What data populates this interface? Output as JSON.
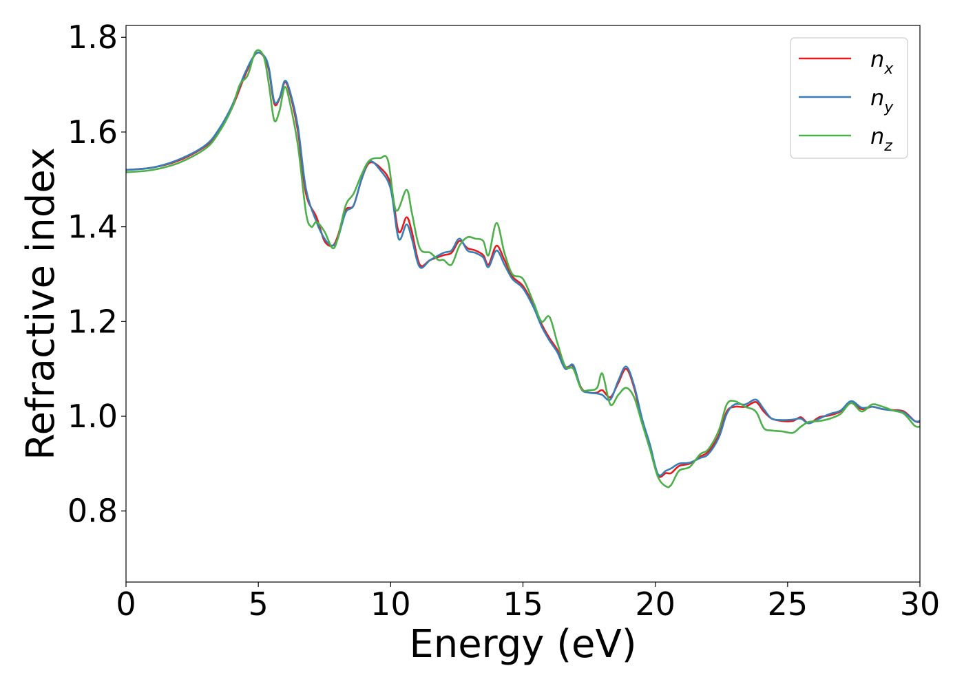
{
  "chart_data": {
    "type": "line",
    "title": "",
    "xlabel": "Energy (eV)",
    "ylabel": "Refractive index",
    "xlim": [
      0,
      30
    ],
    "ylim": [
      0.65,
      1.825
    ],
    "xticks": [
      0,
      5,
      10,
      15,
      20,
      25,
      30
    ],
    "yticks": [
      0.8,
      1.0,
      1.2,
      1.4,
      1.6,
      1.8
    ],
    "grid": false,
    "legend_position": "top-right",
    "series": [
      {
        "name": "n_x",
        "legend_base": "n",
        "legend_sub": "x",
        "color": "#e41a1c",
        "points": [
          [
            0,
            1.52
          ],
          [
            1,
            1.525
          ],
          [
            2,
            1.54
          ],
          [
            3,
            1.57
          ],
          [
            3.5,
            1.6
          ],
          [
            4,
            1.65
          ],
          [
            4.5,
            1.72
          ],
          [
            4.9,
            1.765
          ],
          [
            5.2,
            1.76
          ],
          [
            5.4,
            1.73
          ],
          [
            5.6,
            1.66
          ],
          [
            5.8,
            1.67
          ],
          [
            6.0,
            1.705
          ],
          [
            6.2,
            1.68
          ],
          [
            6.5,
            1.6
          ],
          [
            6.8,
            1.47
          ],
          [
            7.2,
            1.42
          ],
          [
            7.5,
            1.37
          ],
          [
            7.8,
            1.36
          ],
          [
            8.0,
            1.38
          ],
          [
            8.3,
            1.435
          ],
          [
            8.6,
            1.445
          ],
          [
            8.9,
            1.5
          ],
          [
            9.2,
            1.535
          ],
          [
            9.6,
            1.525
          ],
          [
            10.0,
            1.49
          ],
          [
            10.3,
            1.39
          ],
          [
            10.6,
            1.42
          ],
          [
            10.8,
            1.39
          ],
          [
            11.1,
            1.32
          ],
          [
            11.5,
            1.33
          ],
          [
            12.0,
            1.34
          ],
          [
            12.3,
            1.345
          ],
          [
            12.6,
            1.37
          ],
          [
            12.9,
            1.355
          ],
          [
            13.2,
            1.35
          ],
          [
            13.5,
            1.34
          ],
          [
            13.7,
            1.32
          ],
          [
            14.0,
            1.36
          ],
          [
            14.3,
            1.33
          ],
          [
            14.6,
            1.295
          ],
          [
            15.0,
            1.275
          ],
          [
            15.4,
            1.235
          ],
          [
            15.7,
            1.195
          ],
          [
            16.0,
            1.165
          ],
          [
            16.3,
            1.14
          ],
          [
            16.6,
            1.105
          ],
          [
            16.9,
            1.105
          ],
          [
            17.2,
            1.06
          ],
          [
            17.5,
            1.05
          ],
          [
            17.8,
            1.05
          ],
          [
            18.0,
            1.055
          ],
          [
            18.3,
            1.04
          ],
          [
            18.6,
            1.07
          ],
          [
            18.9,
            1.1
          ],
          [
            19.2,
            1.06
          ],
          [
            19.5,
            0.99
          ],
          [
            19.8,
            0.935
          ],
          [
            20.1,
            0.875
          ],
          [
            20.4,
            0.88
          ],
          [
            20.6,
            0.88
          ],
          [
            20.9,
            0.895
          ],
          [
            21.3,
            0.9
          ],
          [
            21.7,
            0.915
          ],
          [
            22.0,
            0.925
          ],
          [
            22.4,
            0.96
          ],
          [
            22.7,
            1.01
          ],
          [
            23.0,
            1.02
          ],
          [
            23.4,
            1.02
          ],
          [
            23.8,
            1.03
          ],
          [
            24.1,
            1.01
          ],
          [
            24.4,
            0.995
          ],
          [
            24.8,
            0.99
          ],
          [
            25.2,
            0.99
          ],
          [
            25.5,
            0.998
          ],
          [
            25.8,
            0.985
          ],
          [
            26.2,
            0.998
          ],
          [
            26.6,
            1.002
          ],
          [
            27.0,
            1.01
          ],
          [
            27.4,
            1.028
          ],
          [
            27.8,
            1.015
          ],
          [
            28.2,
            1.02
          ],
          [
            28.6,
            1.015
          ],
          [
            29.0,
            1.013
          ],
          [
            29.4,
            1.01
          ],
          [
            29.8,
            0.99
          ],
          [
            30.0,
            0.988
          ]
        ]
      },
      {
        "name": "n_y",
        "legend_base": "n",
        "legend_sub": "y",
        "color": "#377eb8",
        "points": [
          [
            0,
            1.52
          ],
          [
            1,
            1.525
          ],
          [
            2,
            1.542
          ],
          [
            3,
            1.572
          ],
          [
            3.5,
            1.605
          ],
          [
            4,
            1.655
          ],
          [
            4.5,
            1.725
          ],
          [
            4.9,
            1.765
          ],
          [
            5.2,
            1.762
          ],
          [
            5.4,
            1.735
          ],
          [
            5.6,
            1.665
          ],
          [
            5.8,
            1.672
          ],
          [
            6.0,
            1.708
          ],
          [
            6.2,
            1.685
          ],
          [
            6.5,
            1.61
          ],
          [
            6.8,
            1.48
          ],
          [
            7.2,
            1.41
          ],
          [
            7.5,
            1.375
          ],
          [
            7.8,
            1.36
          ],
          [
            8.0,
            1.375
          ],
          [
            8.3,
            1.43
          ],
          [
            8.6,
            1.445
          ],
          [
            8.9,
            1.5
          ],
          [
            9.2,
            1.538
          ],
          [
            9.6,
            1.52
          ],
          [
            10.0,
            1.48
          ],
          [
            10.3,
            1.375
          ],
          [
            10.6,
            1.405
          ],
          [
            10.8,
            1.375
          ],
          [
            11.1,
            1.315
          ],
          [
            11.5,
            1.33
          ],
          [
            12.0,
            1.345
          ],
          [
            12.3,
            1.35
          ],
          [
            12.6,
            1.375
          ],
          [
            12.9,
            1.35
          ],
          [
            13.2,
            1.345
          ],
          [
            13.5,
            1.335
          ],
          [
            13.7,
            1.315
          ],
          [
            14.0,
            1.35
          ],
          [
            14.3,
            1.32
          ],
          [
            14.6,
            1.29
          ],
          [
            15.0,
            1.27
          ],
          [
            15.4,
            1.23
          ],
          [
            15.7,
            1.19
          ],
          [
            16.0,
            1.16
          ],
          [
            16.3,
            1.135
          ],
          [
            16.6,
            1.1
          ],
          [
            16.9,
            1.108
          ],
          [
            17.2,
            1.058
          ],
          [
            17.5,
            1.05
          ],
          [
            17.8,
            1.048
          ],
          [
            18.0,
            1.045
          ],
          [
            18.3,
            1.035
          ],
          [
            18.6,
            1.075
          ],
          [
            18.9,
            1.105
          ],
          [
            19.2,
            1.065
          ],
          [
            19.5,
            0.995
          ],
          [
            19.8,
            0.94
          ],
          [
            20.1,
            0.878
          ],
          [
            20.4,
            0.885
          ],
          [
            20.6,
            0.89
          ],
          [
            20.9,
            0.9
          ],
          [
            21.3,
            0.902
          ],
          [
            21.7,
            0.912
          ],
          [
            22.0,
            0.92
          ],
          [
            22.4,
            0.955
          ],
          [
            22.7,
            1.005
          ],
          [
            23.0,
            1.025
          ],
          [
            23.4,
            1.025
          ],
          [
            23.8,
            1.035
          ],
          [
            24.1,
            1.015
          ],
          [
            24.4,
            0.995
          ],
          [
            24.8,
            0.992
          ],
          [
            25.2,
            0.993
          ],
          [
            25.5,
            0.995
          ],
          [
            25.8,
            0.985
          ],
          [
            26.2,
            0.995
          ],
          [
            26.6,
            1.005
          ],
          [
            27.0,
            1.012
          ],
          [
            27.4,
            1.032
          ],
          [
            27.8,
            1.018
          ],
          [
            28.2,
            1.02
          ],
          [
            28.6,
            1.015
          ],
          [
            29.0,
            1.012
          ],
          [
            29.4,
            1.008
          ],
          [
            29.8,
            0.99
          ],
          [
            30.0,
            0.99
          ]
        ]
      },
      {
        "name": "n_z",
        "legend_base": "n",
        "legend_sub": "z",
        "color": "#4daf4a",
        "points": [
          [
            0,
            1.515
          ],
          [
            1,
            1.52
          ],
          [
            2,
            1.535
          ],
          [
            3,
            1.565
          ],
          [
            3.5,
            1.598
          ],
          [
            4,
            1.65
          ],
          [
            4.3,
            1.7
          ],
          [
            4.6,
            1.72
          ],
          [
            4.9,
            1.77
          ],
          [
            5.2,
            1.76
          ],
          [
            5.4,
            1.7
          ],
          [
            5.6,
            1.625
          ],
          [
            5.8,
            1.645
          ],
          [
            6.0,
            1.695
          ],
          [
            6.2,
            1.66
          ],
          [
            6.5,
            1.57
          ],
          [
            6.8,
            1.43
          ],
          [
            7.0,
            1.4
          ],
          [
            7.2,
            1.41
          ],
          [
            7.5,
            1.39
          ],
          [
            7.8,
            1.355
          ],
          [
            8.0,
            1.375
          ],
          [
            8.3,
            1.445
          ],
          [
            8.6,
            1.47
          ],
          [
            8.9,
            1.51
          ],
          [
            9.2,
            1.54
          ],
          [
            9.6,
            1.545
          ],
          [
            9.9,
            1.54
          ],
          [
            10.2,
            1.435
          ],
          [
            10.6,
            1.478
          ],
          [
            10.8,
            1.43
          ],
          [
            11.1,
            1.355
          ],
          [
            11.5,
            1.345
          ],
          [
            11.8,
            1.33
          ],
          [
            12.0,
            1.33
          ],
          [
            12.3,
            1.32
          ],
          [
            12.6,
            1.36
          ],
          [
            12.9,
            1.378
          ],
          [
            13.2,
            1.375
          ],
          [
            13.5,
            1.37
          ],
          [
            13.7,
            1.34
          ],
          [
            14.0,
            1.408
          ],
          [
            14.3,
            1.345
          ],
          [
            14.6,
            1.3
          ],
          [
            15.0,
            1.29
          ],
          [
            15.4,
            1.24
          ],
          [
            15.7,
            1.2
          ],
          [
            16.0,
            1.21
          ],
          [
            16.3,
            1.155
          ],
          [
            16.6,
            1.105
          ],
          [
            16.9,
            1.1
          ],
          [
            17.2,
            1.058
          ],
          [
            17.5,
            1.055
          ],
          [
            17.8,
            1.06
          ],
          [
            18.0,
            1.09
          ],
          [
            18.3,
            1.025
          ],
          [
            18.6,
            1.045
          ],
          [
            18.9,
            1.06
          ],
          [
            19.2,
            1.04
          ],
          [
            19.5,
            0.985
          ],
          [
            19.8,
            0.93
          ],
          [
            20.1,
            0.872
          ],
          [
            20.4,
            0.852
          ],
          [
            20.6,
            0.855
          ],
          [
            20.9,
            0.885
          ],
          [
            21.3,
            0.893
          ],
          [
            21.7,
            0.92
          ],
          [
            22.0,
            0.93
          ],
          [
            22.4,
            0.97
          ],
          [
            22.7,
            1.025
          ],
          [
            23.0,
            1.032
          ],
          [
            23.4,
            1.02
          ],
          [
            23.8,
            1.01
          ],
          [
            24.1,
            0.975
          ],
          [
            24.4,
            0.97
          ],
          [
            24.8,
            0.968
          ],
          [
            25.2,
            0.965
          ],
          [
            25.5,
            0.978
          ],
          [
            25.8,
            0.988
          ],
          [
            26.2,
            0.99
          ],
          [
            26.6,
            0.995
          ],
          [
            27.0,
            1.005
          ],
          [
            27.4,
            1.028
          ],
          [
            27.8,
            1.01
          ],
          [
            28.2,
            1.025
          ],
          [
            28.6,
            1.02
          ],
          [
            29.0,
            1.012
          ],
          [
            29.4,
            1.005
          ],
          [
            29.8,
            0.98
          ],
          [
            30.0,
            0.978
          ]
        ]
      }
    ]
  }
}
